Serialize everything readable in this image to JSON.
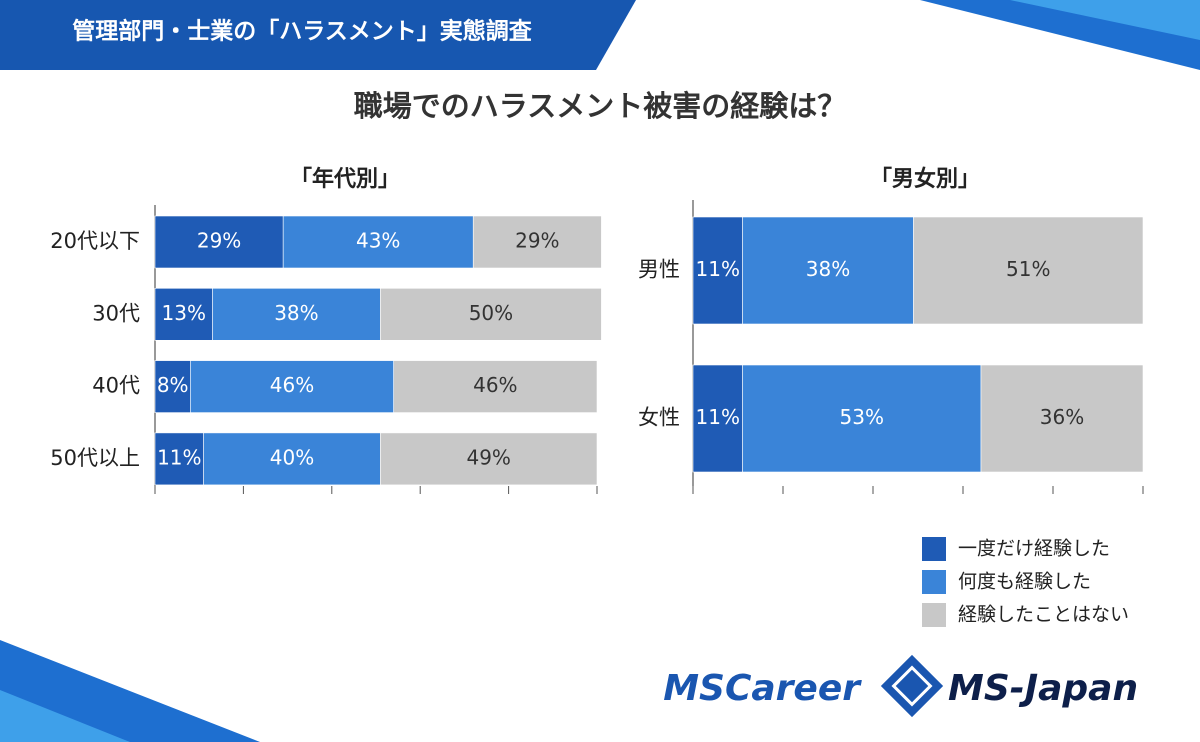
{
  "header": "管理部門・士業の「ハラスメント」実態調査",
  "title": "職場でのハラスメント被害の経験は？",
  "logos": [
    "MSCareer",
    "MS-Japan"
  ],
  "chart_data": [
    {
      "type": "stacked-barh",
      "title": "「年代別」",
      "categories": [
        "20代以下",
        "30代",
        "40代",
        "50代以上"
      ],
      "xlim": [
        0,
        100
      ],
      "xticks": [
        0,
        20,
        40,
        60,
        80,
        100
      ],
      "series": [
        {
          "name": "一度だけ経験した",
          "color": "#1f5bb5",
          "values": [
            29,
            13,
            8,
            11
          ],
          "value_labels": [
            "29%",
            "13%",
            "8%",
            "11%"
          ]
        },
        {
          "name": "何度も経験した",
          "color": "#3a84d8",
          "values": [
            43,
            38,
            46,
            40
          ],
          "value_labels": [
            "43%",
            "38%",
            "46%",
            "40%"
          ]
        },
        {
          "name": "経験したことはない",
          "color": "#c8c8c8",
          "values": [
            29,
            50,
            46,
            49
          ],
          "value_labels": [
            "29%",
            "50%",
            "46%",
            "49%"
          ]
        }
      ]
    },
    {
      "type": "stacked-barh",
      "title": "「男女別」",
      "categories": [
        "男性",
        "女性"
      ],
      "xlim": [
        0,
        100
      ],
      "xticks": [
        0,
        20,
        40,
        60,
        80,
        100
      ],
      "series": [
        {
          "color": "#1f5bb5",
          "values": [
            11,
            11
          ],
          "value_labels": [
            "11%",
            "11%"
          ]
        },
        {
          "color": "#3a84d8",
          "values": [
            38,
            53
          ],
          "value_labels": [
            "38%",
            "53%"
          ]
        },
        {
          "color": "#c8c8c8",
          "values": [
            51,
            36
          ],
          "value_labels": [
            "51%",
            "36%"
          ]
        }
      ]
    }
  ]
}
